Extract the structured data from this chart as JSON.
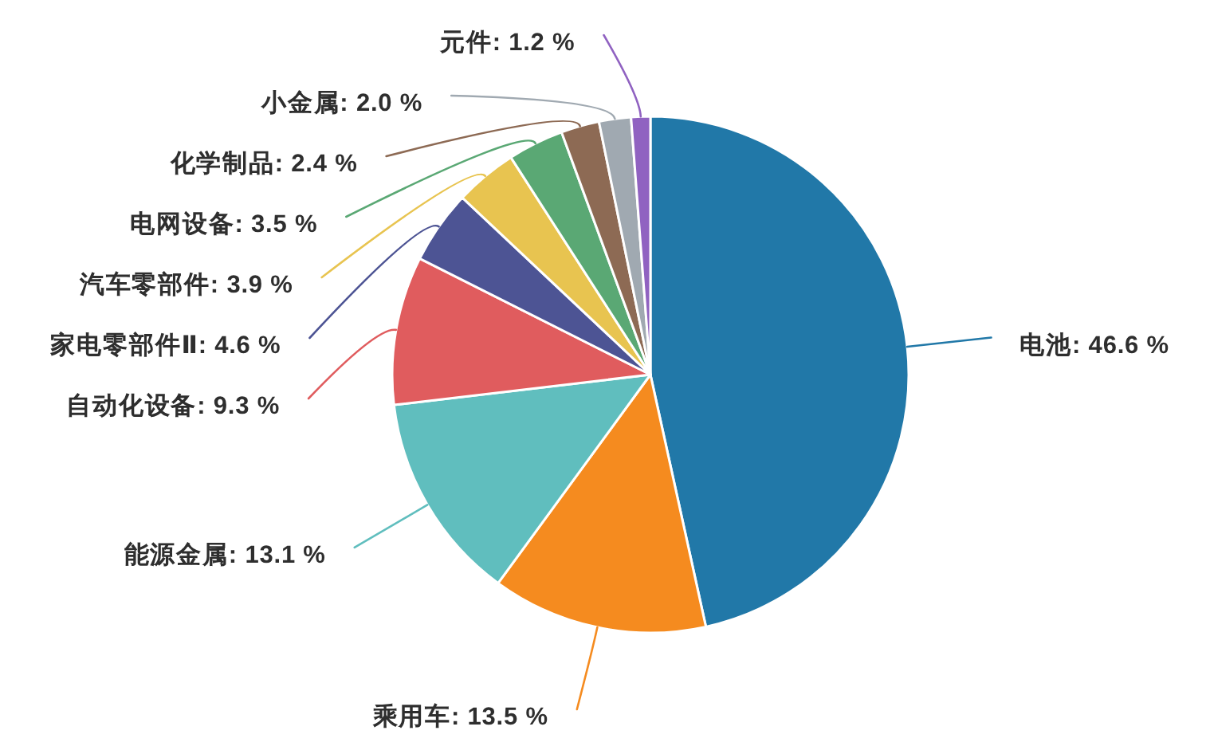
{
  "chart_data": {
    "type": "pie",
    "categories": [
      "电池",
      "乘用车",
      "能源金属",
      "自动化设备",
      "家电零部件Ⅱ",
      "汽车零部件",
      "电网设备",
      "化学制品",
      "小金属",
      "元件"
    ],
    "values": [
      46.6,
      13.5,
      13.1,
      9.3,
      4.6,
      3.9,
      3.5,
      2.4,
      2.0,
      1.2
    ],
    "value_labels": [
      "46.6 %",
      "13.5 %",
      "13.1 %",
      "9.3 %",
      "4.6 %",
      "3.9 %",
      "3.5 %",
      "2.4 %",
      "2.0 %",
      "1.2 %"
    ],
    "colors": [
      "#2178a8",
      "#f58b1f",
      "#60bebe",
      "#e05c5e",
      "#4d5494",
      "#e8c450",
      "#5aa874",
      "#8d6a54",
      "#a0a9b1",
      "#9062c1"
    ]
  }
}
